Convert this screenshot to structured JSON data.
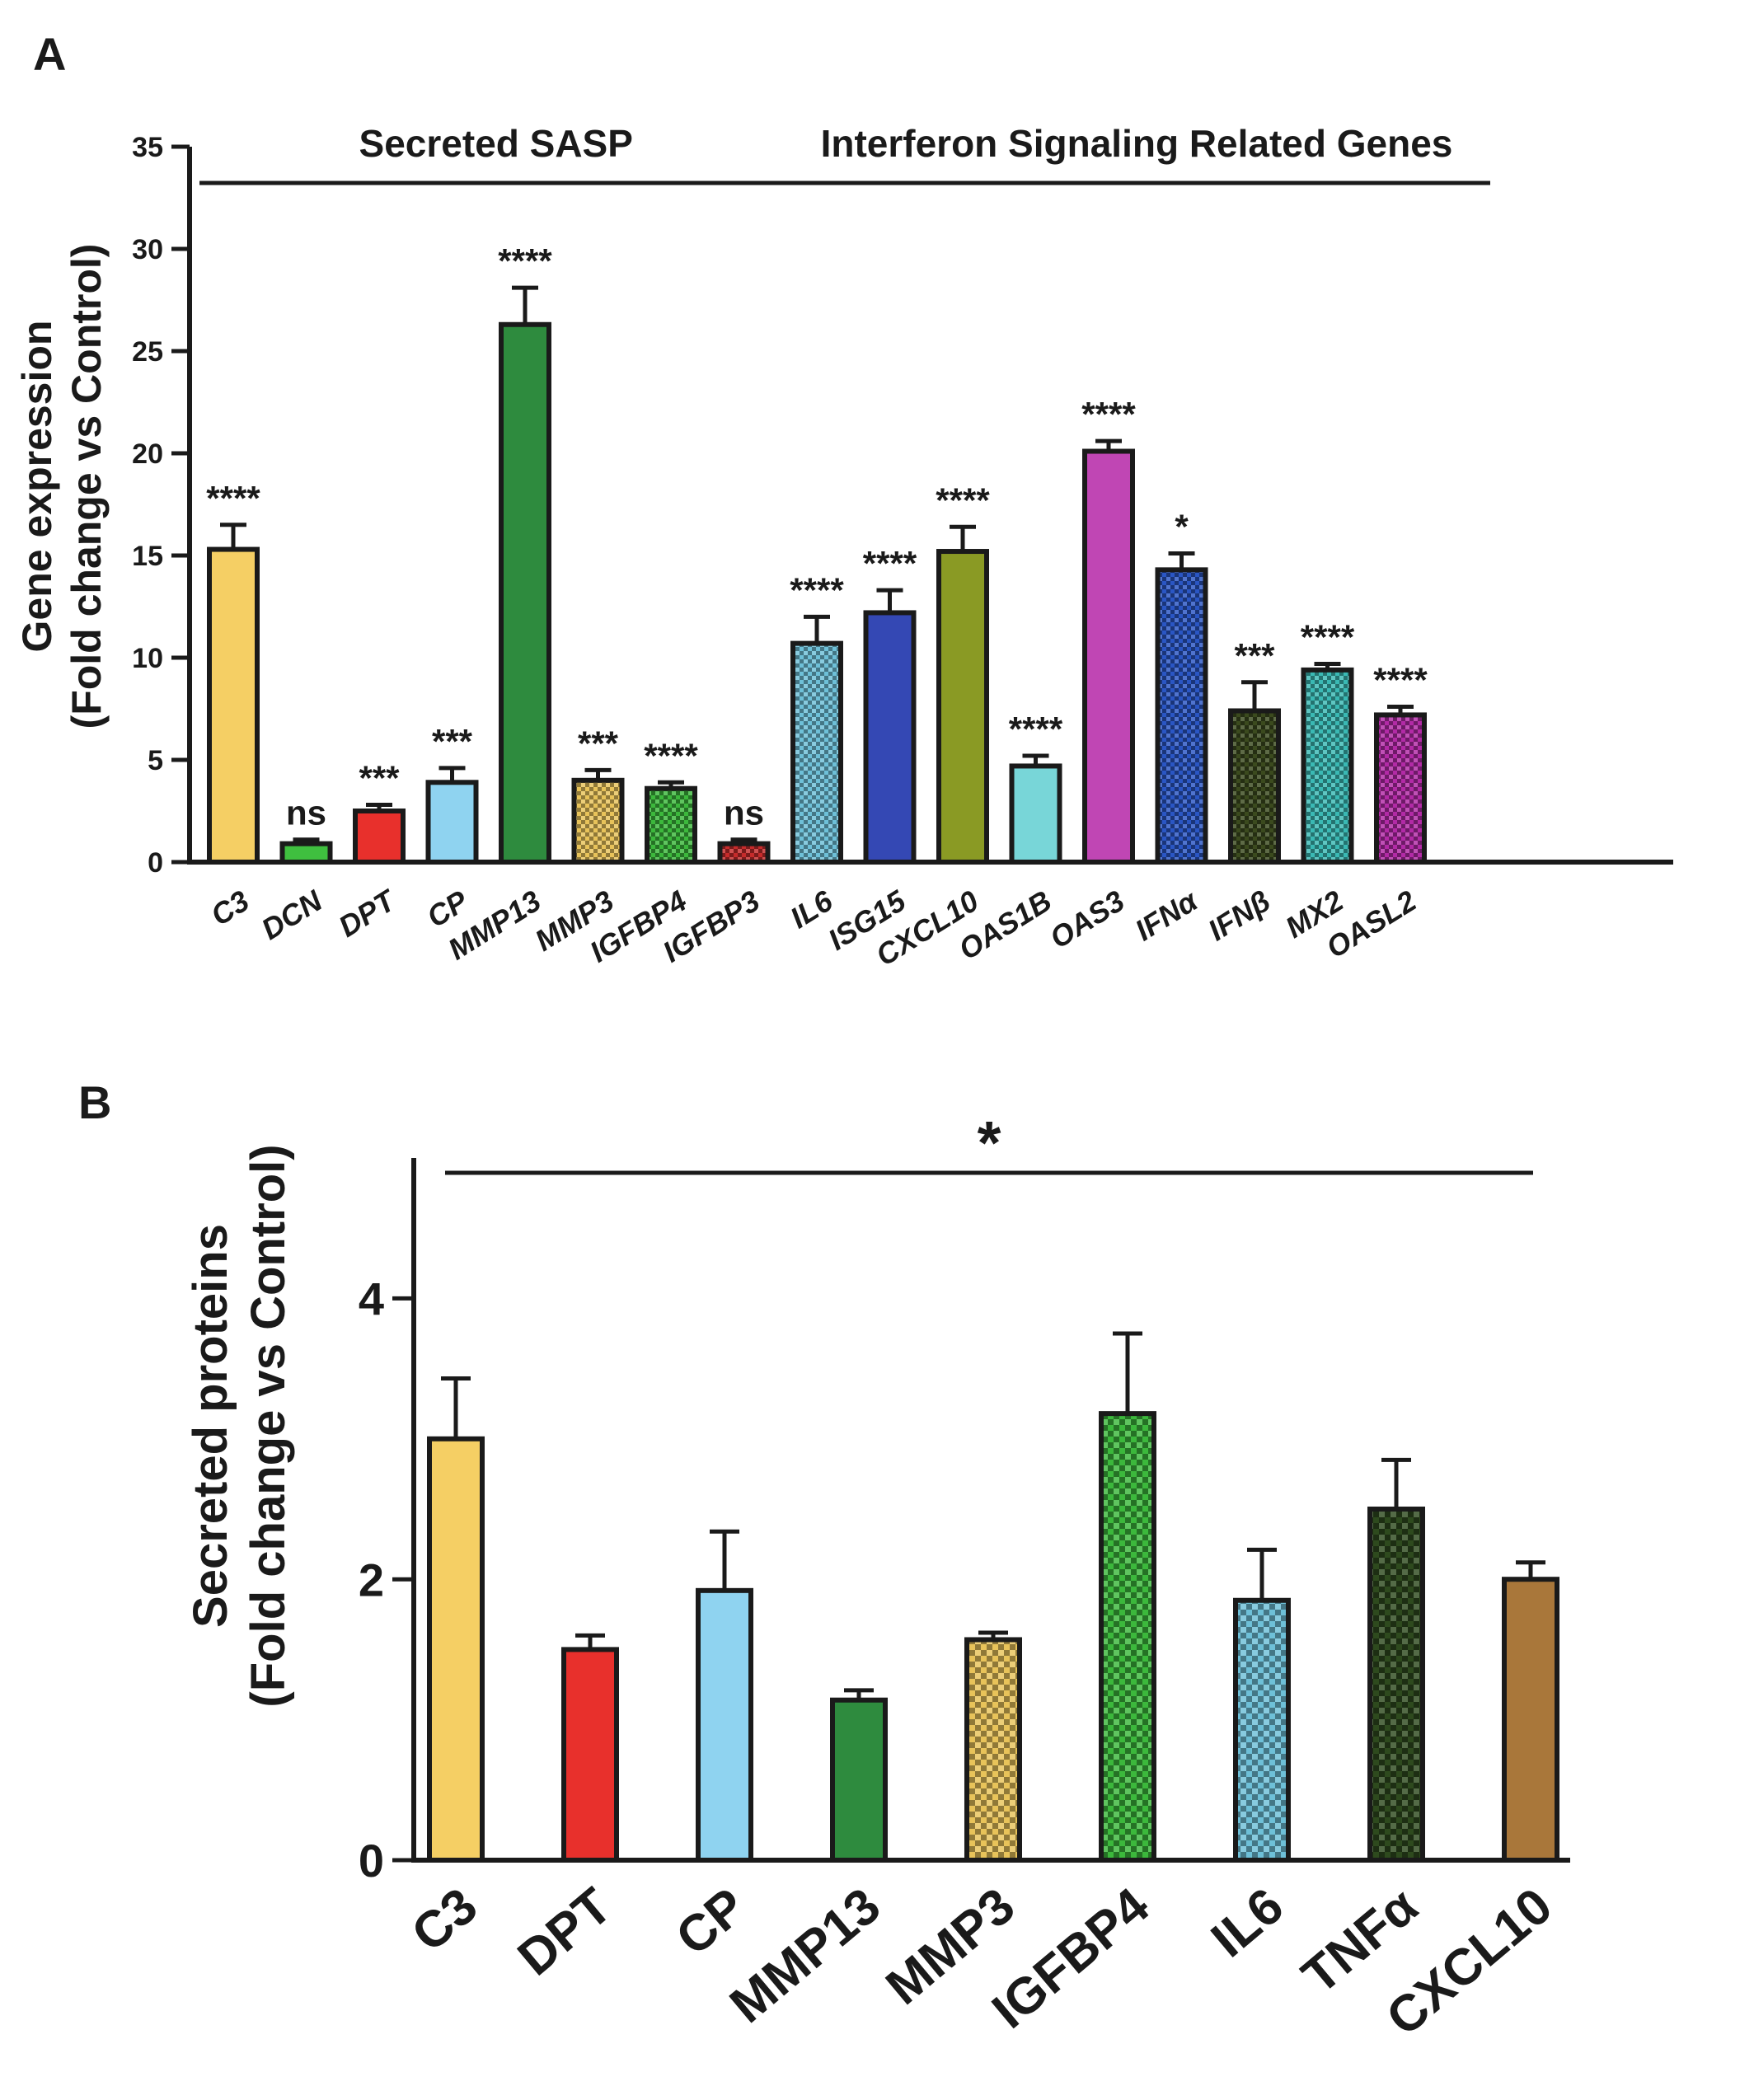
{
  "chart_data": [
    {
      "panel_label": "A",
      "type": "bar",
      "ylabel_line1": "Gene expression",
      "ylabel_line2": "(Fold change vs Control)",
      "ylim": [
        0,
        35
      ],
      "yticks": [
        "0",
        "5",
        "10",
        "15",
        "20",
        "25",
        "30",
        "35"
      ],
      "groups": [
        {
          "label": "Secreted SASP",
          "from": 0,
          "to": 7
        },
        {
          "label": "Interferon Signaling Related Genes",
          "from": 8,
          "to": 16
        }
      ],
      "categories": [
        "C3",
        "DCN",
        "DPT",
        "CP",
        "MMP13",
        "MMP3",
        "IGFBP4",
        "IGFBP3",
        "IL6",
        "ISG15",
        "CXCL10",
        "OAS1B",
        "OAS3",
        "IFNα",
        "IFNβ",
        "MX2",
        "OASL2"
      ],
      "values": [
        15.3,
        0.9,
        2.5,
        3.9,
        26.3,
        4.0,
        3.6,
        0.9,
        10.7,
        12.2,
        15.2,
        4.7,
        20.1,
        14.3,
        7.4,
        9.4,
        7.2
      ],
      "errors": [
        1.2,
        0.2,
        0.3,
        0.7,
        1.8,
        0.5,
        0.3,
        0.2,
        1.3,
        1.1,
        1.2,
        0.5,
        0.5,
        0.8,
        1.4,
        0.3,
        0.4
      ],
      "significance": [
        "****",
        "ns",
        "***",
        "***",
        "****",
        "***",
        "****",
        "ns",
        "****",
        "****",
        "****",
        "****",
        "****",
        "*",
        "***",
        "****",
        "****"
      ],
      "colors": [
        "#f5cf64",
        "#3fbf3f",
        "#e8302c",
        "#8fd3f0",
        "#2e8b3e",
        "#e8c35a",
        "#3cb83c",
        "#c62b2b",
        "#6ec0d8",
        "#3448b4",
        "#8a9a24",
        "#78d6d8",
        "#c046b4",
        "#2a56c4",
        "#3b4a1e",
        "#3ab9b4",
        "#b22aa6"
      ],
      "patterned": [
        false,
        false,
        false,
        false,
        false,
        true,
        true,
        true,
        true,
        false,
        false,
        false,
        false,
        true,
        true,
        true,
        true
      ]
    },
    {
      "panel_label": "B",
      "type": "bar",
      "ylabel_line1": "Secreted proteins",
      "ylabel_line2": "(Fold change vs Control)",
      "ylim": [
        0,
        5
      ],
      "yticks": [
        "0",
        "2",
        "4"
      ],
      "overall_significance": "*",
      "categories": [
        "C3",
        "DPT",
        "CP",
        "MMP13",
        "MMP3",
        "IGFBP4",
        "IL6",
        "TNFα",
        "CXCL10"
      ],
      "values": [
        3.0,
        1.5,
        1.92,
        1.14,
        1.57,
        3.18,
        1.85,
        2.5,
        2.0
      ],
      "errors": [
        0.43,
        0.1,
        0.42,
        0.07,
        0.05,
        0.57,
        0.36,
        0.35,
        0.12
      ],
      "colors": [
        "#f5cf64",
        "#e8302c",
        "#8fd3f0",
        "#2e8b3e",
        "#e8c35a",
        "#3cb83c",
        "#6ec0d8",
        "#2e4a1e",
        "#a9773a"
      ],
      "patterned": [
        false,
        false,
        false,
        false,
        true,
        true,
        true,
        true,
        false
      ]
    }
  ]
}
